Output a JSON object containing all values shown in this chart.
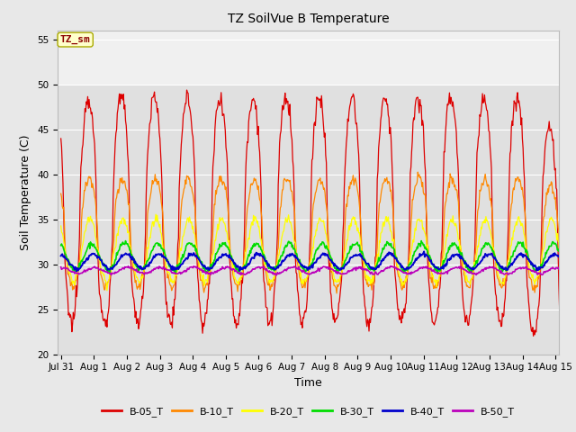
{
  "title": "TZ SoilVue B Temperature",
  "xlabel": "Time",
  "ylabel": "Soil Temperature (C)",
  "ylim": [
    20,
    56
  ],
  "yticks": [
    20,
    25,
    30,
    35,
    40,
    45,
    50,
    55
  ],
  "fig_bg": "#e8e8e8",
  "plot_bg": "#e0e0e0",
  "annotation_text": "TZ_sm",
  "annotation_color": "#8b0000",
  "annotation_bg": "#ffffcc",
  "series_colors": {
    "B-05_T": "#dd0000",
    "B-10_T": "#ff8800",
    "B-20_T": "#ffff00",
    "B-30_T": "#00dd00",
    "B-40_T": "#0000cc",
    "B-50_T": "#bb00bb"
  },
  "xtick_labels": [
    "Jul 31",
    "Aug 1",
    "Aug 2",
    "Aug 3",
    "Aug 4",
    "Aug 5",
    "Aug 6",
    "Aug 7",
    "Aug 8",
    "Aug 9",
    "Aug 10",
    "Aug 11",
    "Aug 12",
    "Aug 13",
    "Aug 14",
    "Aug 15"
  ],
  "n_days": 16,
  "points_per_day": 48
}
